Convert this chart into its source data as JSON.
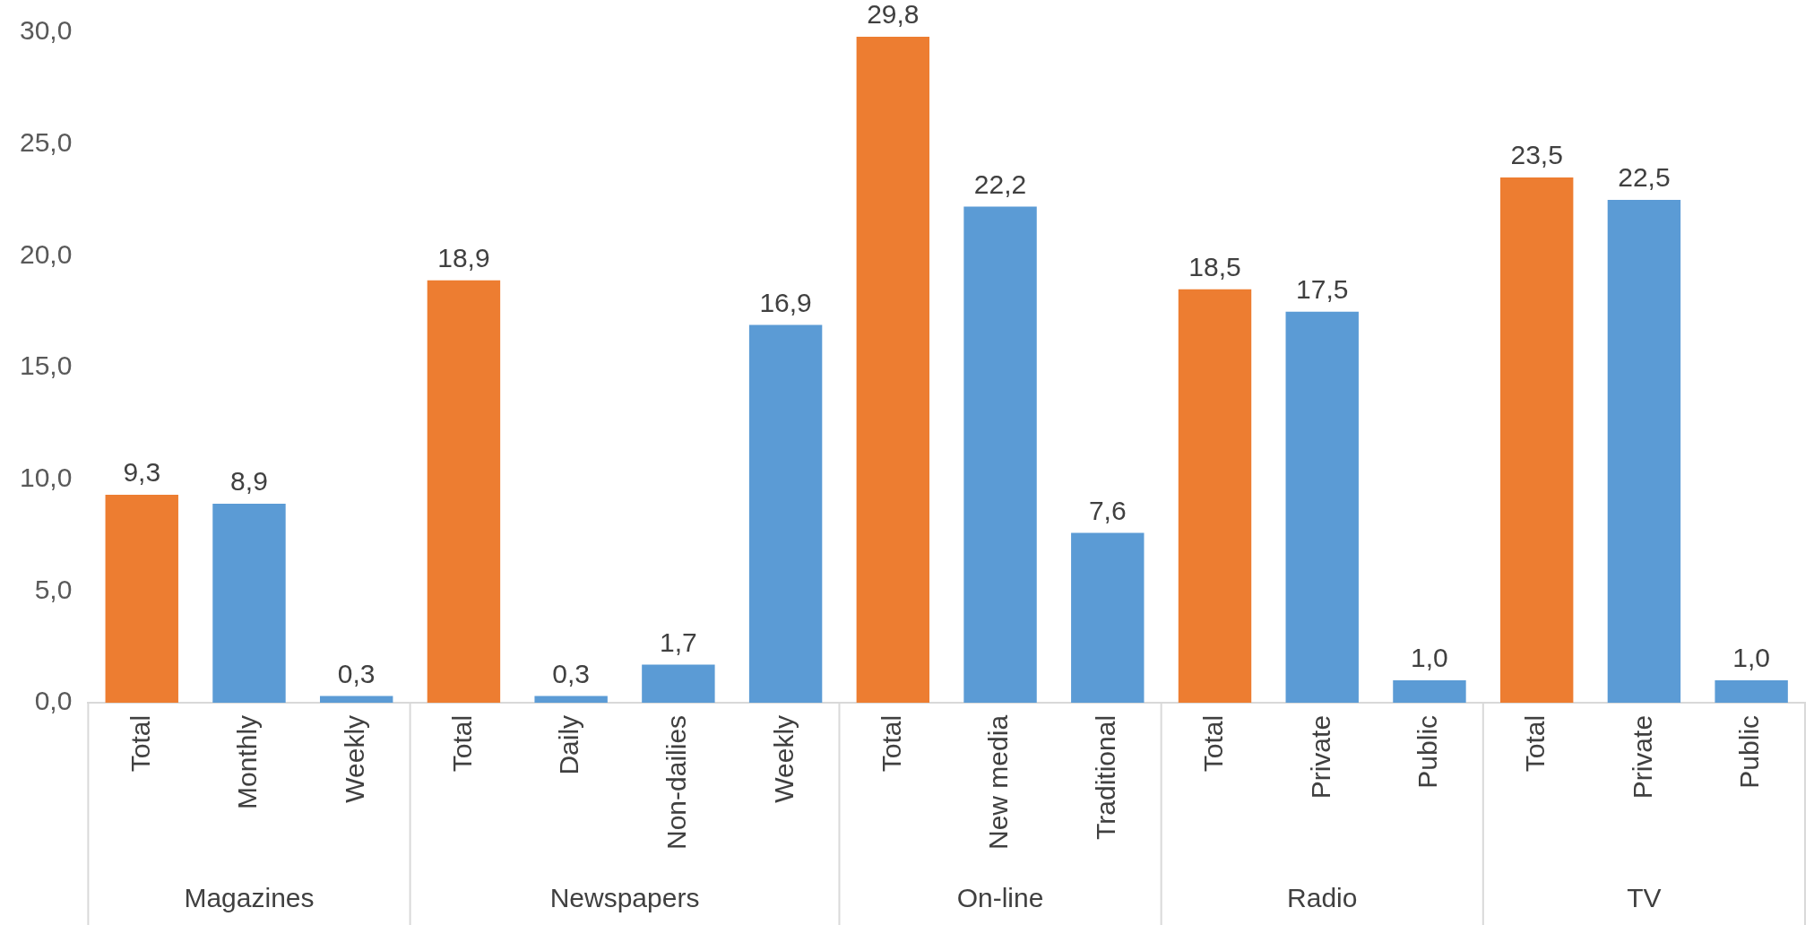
{
  "chart_data": {
    "type": "bar",
    "categories": [
      "Total",
      "Monthly",
      "Weekly",
      "Total",
      "Daily",
      "Non-dailies",
      "Weekly",
      "Total",
      "New media",
      "Traditional",
      "Total",
      "Private",
      "Public",
      "Total",
      "Private",
      "Public"
    ],
    "values": [
      9.3,
      8.9,
      0.3,
      18.9,
      0.3,
      1.7,
      16.9,
      29.8,
      22.2,
      7.6,
      18.5,
      17.5,
      1.0,
      23.5,
      22.5,
      1.0
    ],
    "value_labels": [
      "9,3",
      "8,9",
      "0,3",
      "18,9",
      "0,3",
      "1,7",
      "16,9",
      "29,8",
      "22,2",
      "7,6",
      "18,5",
      "17,5",
      "1,0",
      "23,5",
      "22,5",
      "1,0"
    ],
    "colors": [
      "#ed7d31",
      "#5b9bd5",
      "#5b9bd5",
      "#ed7d31",
      "#5b9bd5",
      "#5b9bd5",
      "#5b9bd5",
      "#ed7d31",
      "#5b9bd5",
      "#5b9bd5",
      "#ed7d31",
      "#5b9bd5",
      "#5b9bd5",
      "#ed7d31",
      "#5b9bd5",
      "#5b9bd5"
    ],
    "annotations": [
      "Magazines",
      "Newspapers",
      "On-line",
      "Radio",
      "TV"
    ],
    "ylim": [
      0,
      30
    ],
    "yticks": [
      {
        "value": 0,
        "label": "0,0"
      },
      {
        "value": 5,
        "label": "5,0"
      },
      {
        "value": 10,
        "label": "10,0"
      },
      {
        "value": 15,
        "label": "15,0"
      },
      {
        "value": 20,
        "label": "20,0"
      },
      {
        "value": 25,
        "label": "25,0"
      },
      {
        "value": 30,
        "label": "30,0"
      }
    ],
    "grid": false,
    "legend": false
  }
}
